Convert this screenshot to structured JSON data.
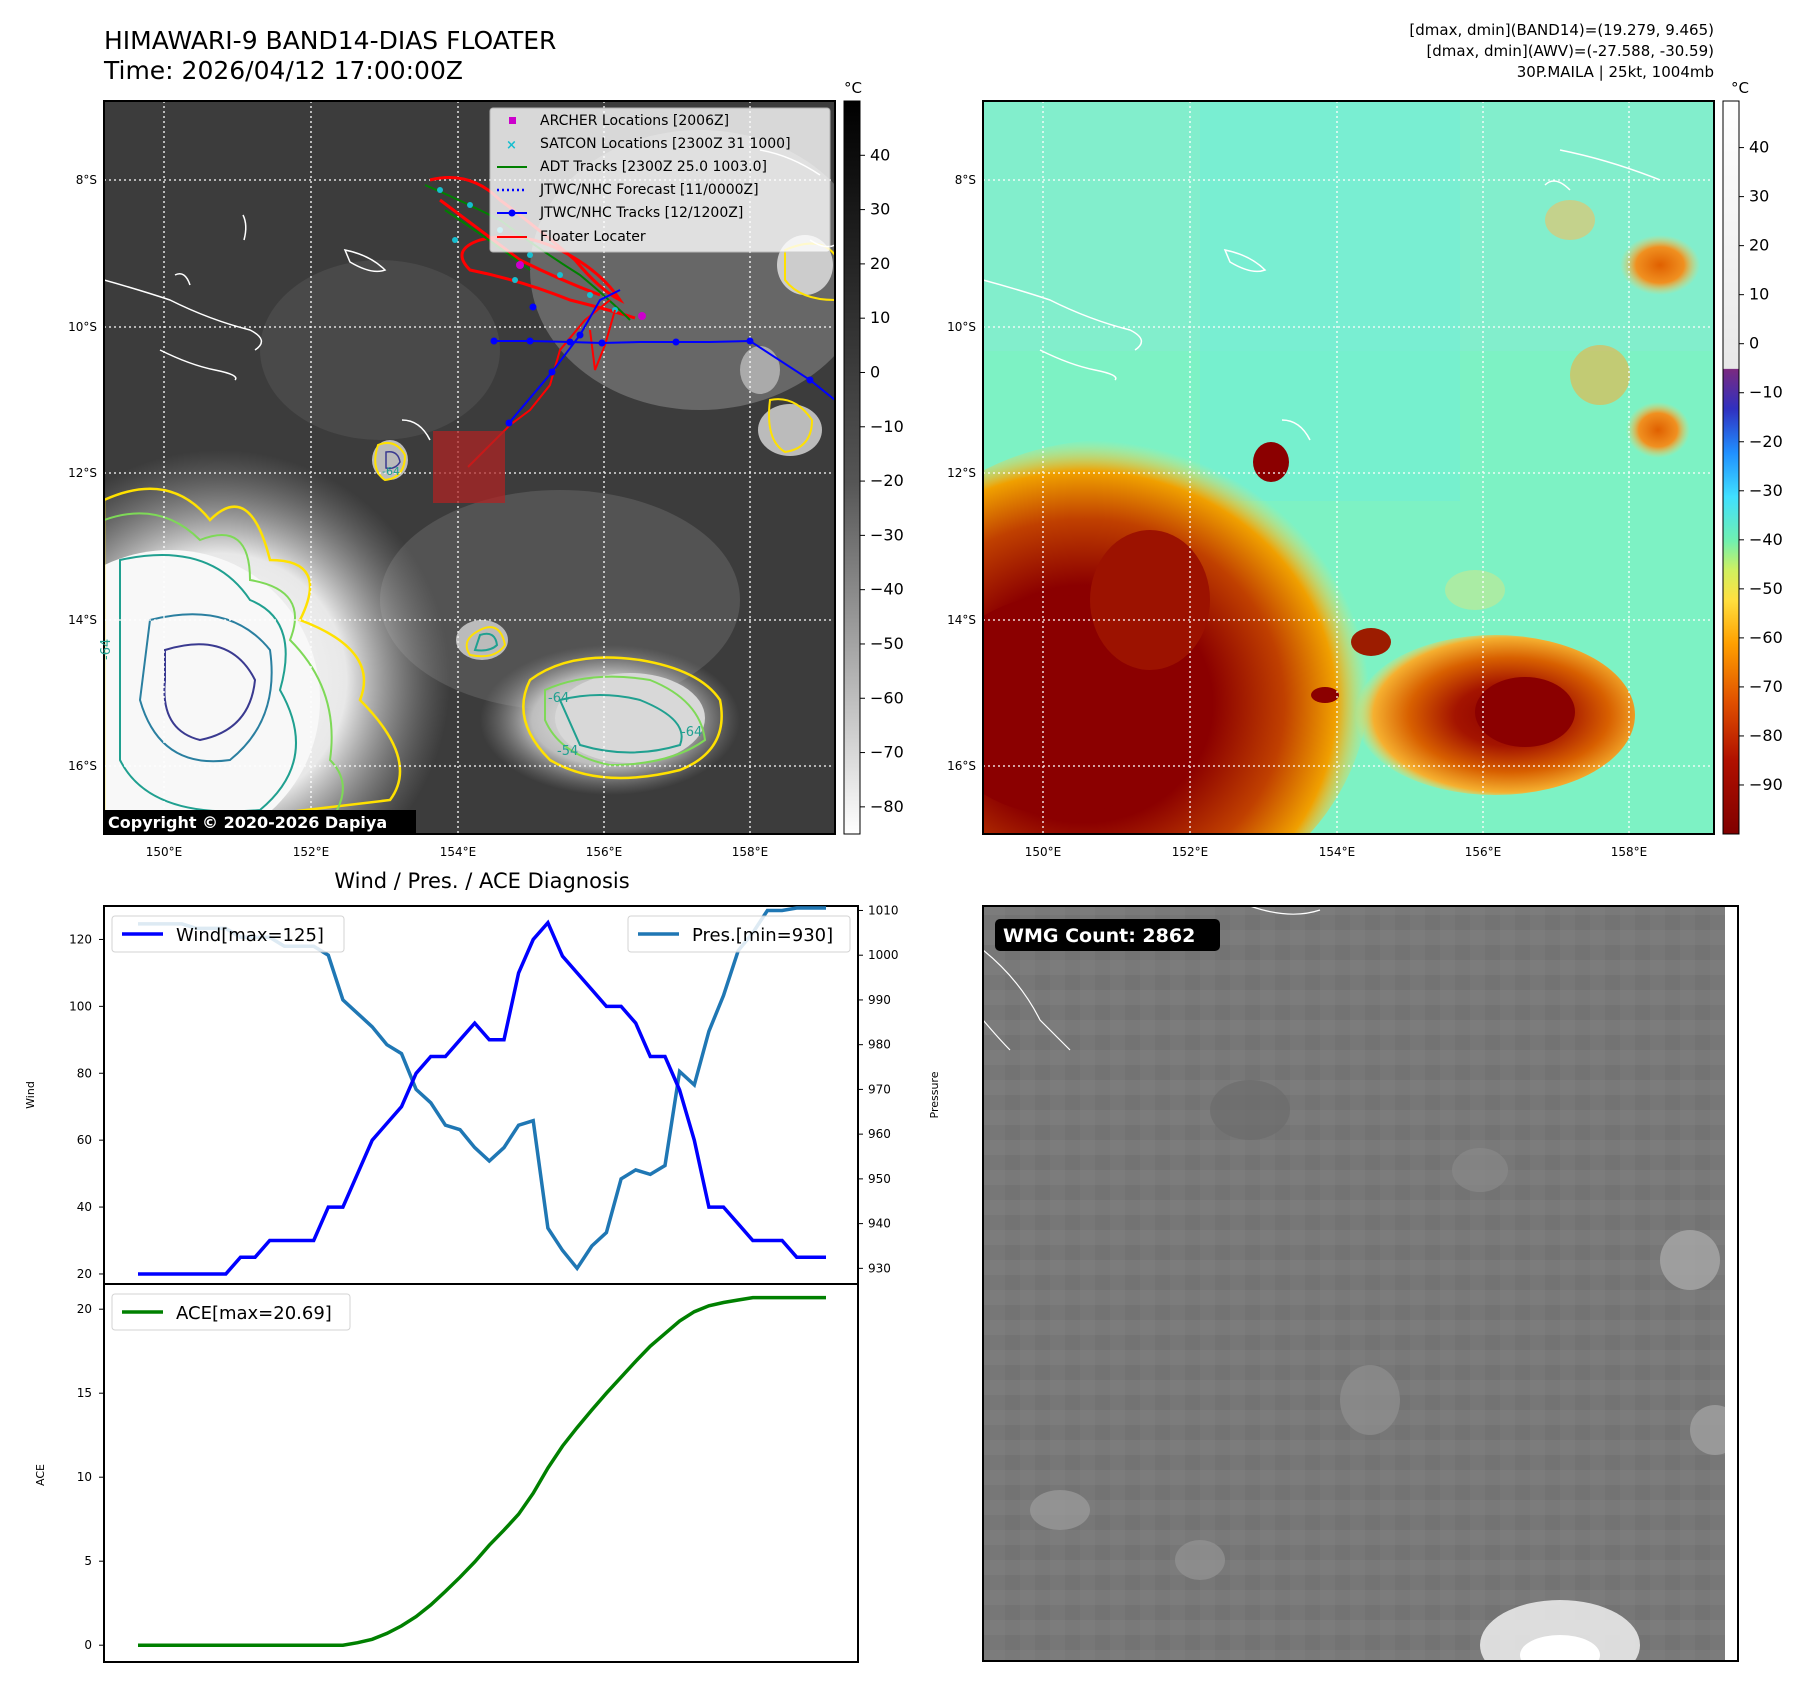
{
  "header": {
    "title_line1": "HIMAWARI-9 BAND14-DIAS FLOATER",
    "title_line2": "Time: 2026/04/12 17:00:00Z",
    "info_line1": "[dmax, dmin](BAND14)=(19.279, 9.465)",
    "info_line2": "[dmax, dmin](AWV)=(-27.588, -30.59)",
    "info_line3": "30P.MAILA | 25kt, 1004mb"
  },
  "map": {
    "lat_labels": [
      "8°S",
      "10°S",
      "12°S",
      "14°S",
      "16°S"
    ],
    "lon_labels": [
      "150°E",
      "152°E",
      "154°E",
      "156°E",
      "158°E"
    ],
    "copyright": "Copyright © 2020-2026 Dapiya",
    "contour_labels": [
      "-64",
      "-64",
      "-64",
      "-54",
      "-64"
    ]
  },
  "legend": {
    "archer": "ARCHER Locations [2006Z]",
    "satcon": "SATCON Locations [2300Z 31 1000]",
    "adt": "ADT Tracks [2300Z 25.0 1003.0]",
    "jtwc_forecast": "JTWC/NHC Forecast [11/0000Z]",
    "jtwc_tracks": "JTWC/NHC Tracks [12/1200Z]",
    "floater": "Floater Locater"
  },
  "colorbar_gray": {
    "unit": "°C",
    "ticks": [
      40,
      30,
      20,
      10,
      0,
      -10,
      -20,
      -30,
      -40,
      -50,
      -60,
      -70,
      -80
    ]
  },
  "colorbar_color": {
    "unit": "°C",
    "ticks": [
      40,
      30,
      20,
      10,
      0,
      -10,
      -20,
      -30,
      -40,
      -50,
      -60,
      -70,
      -80,
      -90
    ]
  },
  "colors": {
    "wind": "#0000ff",
    "pressure": "#1f77b4",
    "ace": "#008000",
    "archer": "#cc00cc",
    "satcon": "#17becf",
    "adt": "#008000",
    "jtwc": "#0000ff",
    "floater": "#ff0000"
  },
  "chart_data": [
    {
      "type": "line",
      "title": "Wind / Pres. / ACE Diagnosis",
      "ylabel": "Wind",
      "y2label": "Pressure",
      "ylim": [
        17,
        130
      ],
      "y2lim": [
        926.5,
        1011
      ],
      "yticks": [
        20,
        40,
        60,
        80,
        100,
        120
      ],
      "y2ticks": [
        930,
        940,
        950,
        960,
        970,
        980,
        990,
        1000,
        1010
      ],
      "series": [
        {
          "name": "Wind[max=125]",
          "axis": "left",
          "values": [
            20,
            20,
            20,
            20,
            20,
            20,
            20,
            25,
            25,
            30,
            30,
            30,
            30,
            40,
            40,
            50,
            60,
            65,
            70,
            80,
            85,
            85,
            90,
            95,
            90,
            90,
            110,
            120,
            125,
            115,
            110,
            105,
            100,
            100,
            95,
            85,
            85,
            75,
            60,
            40,
            40,
            35,
            30,
            30,
            30,
            25,
            25,
            25
          ]
        },
        {
          "name": "Pres.[min=930]",
          "axis": "right",
          "values": [
            1007,
            1007,
            1007,
            1007,
            1006,
            1006,
            1006,
            1004,
            1004,
            1004,
            1002,
            1002,
            1002,
            1000,
            990,
            987,
            984,
            980,
            978,
            970,
            967,
            962,
            961,
            957,
            954,
            957,
            962,
            963,
            939,
            934,
            930,
            935,
            938,
            950,
            952,
            951,
            953,
            974,
            971,
            983,
            991,
            1001,
            1005,
            1010,
            1010,
            1012,
            1012,
            1013
          ]
        }
      ]
    },
    {
      "type": "line",
      "ylabel": "ACE",
      "ylim": [
        -1,
        21.5
      ],
      "yticks": [
        0,
        5,
        10,
        15,
        20
      ],
      "series": [
        {
          "name": "ACE[max=20.69]",
          "values": [
            0,
            0,
            0,
            0,
            0,
            0,
            0,
            0,
            0,
            0,
            0,
            0,
            0,
            0,
            0,
            0.15,
            0.35,
            0.7,
            1.15,
            1.7,
            2.4,
            3.2,
            4.05,
            4.95,
            5.95,
            6.85,
            7.8,
            9.05,
            10.55,
            11.85,
            12.95,
            14.0,
            15.0,
            15.95,
            16.9,
            17.8,
            18.55,
            19.3,
            19.85,
            20.2,
            20.4,
            20.55,
            20.69,
            20.69,
            20.69,
            20.69,
            20.69,
            20.69
          ]
        }
      ]
    }
  ],
  "wmg": {
    "label": "WMG Count: 2862"
  }
}
